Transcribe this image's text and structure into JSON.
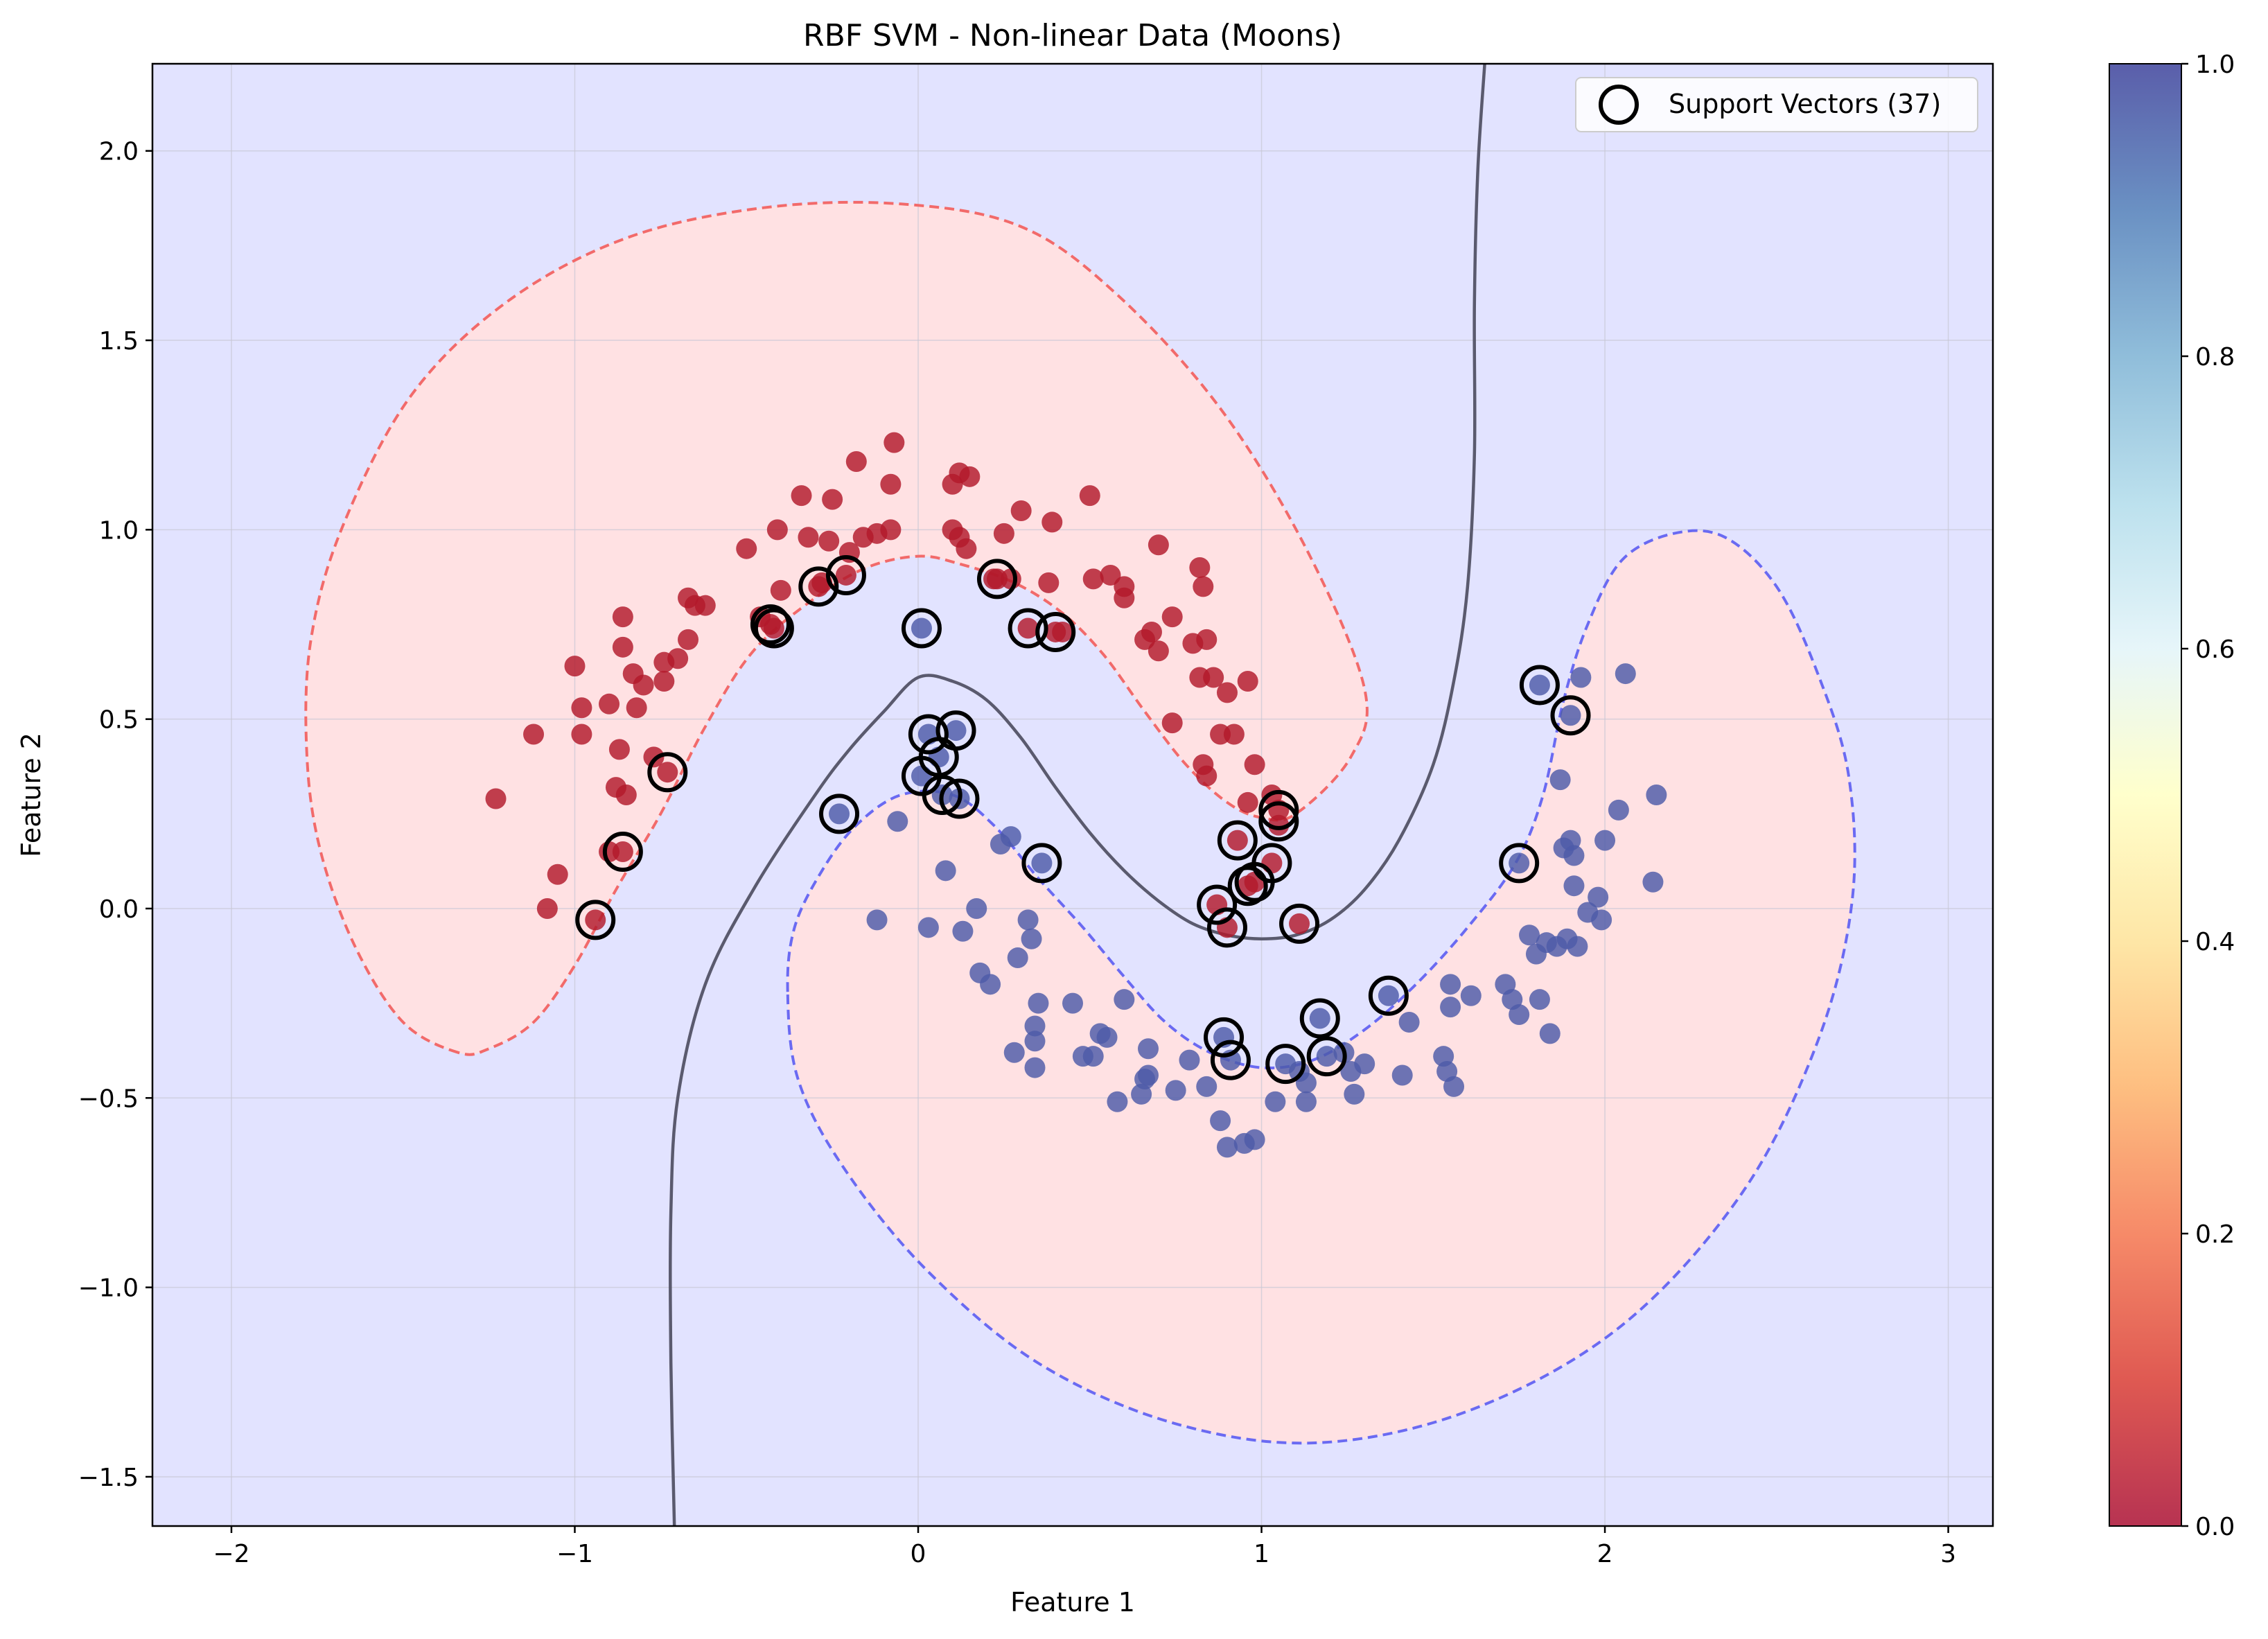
{
  "colors": {
    "background_region": "#e2e3ff",
    "class0_region": "#ffe1e3",
    "class0_point": "#b2182b",
    "class1_point": "#4d5aa8",
    "decision_boundary": "#5a5a6e",
    "margin_class0": "#f26a6a",
    "margin_class1": "#6a6af2",
    "grid": "#c8c8d4"
  },
  "chart_data": {
    "type": "scatter",
    "title": "RBF SVM - Non-linear Data (Moons)",
    "xlabel": "Feature 1",
    "ylabel": "Feature 2",
    "xlim": [
      -2.23,
      3.13
    ],
    "ylim": [
      -1.63,
      2.23
    ],
    "xticks": [
      -2,
      -1,
      0,
      1,
      2,
      3
    ],
    "xtick_labels": [
      "−2",
      "−1",
      "0",
      "1",
      "2",
      "3"
    ],
    "yticks": [
      -1.5,
      -1.0,
      -0.5,
      0.0,
      0.5,
      1.0,
      1.5,
      2.0
    ],
    "ytick_labels": [
      "−1.5",
      "−1.0",
      "−0.5",
      "0.0",
      "0.5",
      "1.0",
      "1.5",
      "2.0"
    ],
    "grid": true,
    "legend": {
      "label": "Support Vectors (37)",
      "position": "top-right"
    },
    "colorbar": {
      "range": [
        0.0,
        1.0
      ],
      "ticks": [
        0.0,
        0.2,
        0.4,
        0.6,
        0.8,
        1.0
      ],
      "tick_labels": [
        "0.0",
        "0.2",
        "0.4",
        "0.6",
        "0.8",
        "1.0"
      ],
      "colormap": [
        "#a50026",
        "#d73027",
        "#f46d43",
        "#fdae61",
        "#fee090",
        "#ffffbf",
        "#e0f3f8",
        "#abd9e9",
        "#74add1",
        "#4575b4",
        "#313695"
      ]
    },
    "decision_boundary": [
      [
        -0.71,
        -1.63
      ],
      [
        -0.72,
        -1.2
      ],
      [
        -0.72,
        -0.8
      ],
      [
        -0.7,
        -0.5
      ],
      [
        -0.62,
        -0.2
      ],
      [
        -0.48,
        0.05
      ],
      [
        -0.3,
        0.3
      ],
      [
        -0.2,
        0.42
      ],
      [
        -0.1,
        0.52
      ],
      [
        0,
        0.61
      ],
      [
        0.1,
        0.6
      ],
      [
        0.2,
        0.55
      ],
      [
        0.3,
        0.45
      ],
      [
        0.4,
        0.32
      ],
      [
        0.5,
        0.2
      ],
      [
        0.6,
        0.1
      ],
      [
        0.7,
        0.02
      ],
      [
        0.8,
        -0.04
      ],
      [
        0.9,
        -0.07
      ],
      [
        1.0,
        -0.08
      ],
      [
        1.1,
        -0.07
      ],
      [
        1.2,
        -0.03
      ],
      [
        1.3,
        0.05
      ],
      [
        1.4,
        0.18
      ],
      [
        1.5,
        0.38
      ],
      [
        1.56,
        0.6
      ],
      [
        1.6,
        0.85
      ],
      [
        1.62,
        1.2
      ],
      [
        1.62,
        1.6
      ],
      [
        1.63,
        1.95
      ],
      [
        1.65,
        2.23
      ]
    ],
    "margin_class0": [
      [
        -1.34,
        -0.38
      ],
      [
        -1.5,
        -0.3
      ],
      [
        -1.64,
        -0.1
      ],
      [
        -1.74,
        0.15
      ],
      [
        -1.78,
        0.4
      ],
      [
        -1.77,
        0.7
      ],
      [
        -1.68,
        1.0
      ],
      [
        -1.48,
        1.35
      ],
      [
        -1.2,
        1.6
      ],
      [
        -0.85,
        1.77
      ],
      [
        -0.45,
        1.85
      ],
      [
        -0.05,
        1.86
      ],
      [
        0.3,
        1.8
      ],
      [
        0.58,
        1.62
      ],
      [
        0.88,
        1.32
      ],
      [
        1.13,
        0.95
      ],
      [
        1.3,
        0.58
      ],
      [
        1.26,
        0.4
      ],
      [
        1.1,
        0.25
      ],
      [
        1.0,
        0.24
      ],
      [
        0.9,
        0.28
      ],
      [
        0.78,
        0.38
      ],
      [
        0.66,
        0.52
      ],
      [
        0.54,
        0.67
      ],
      [
        0.42,
        0.78
      ],
      [
        0.28,
        0.86
      ],
      [
        0.12,
        0.91
      ],
      [
        0,
        0.93
      ],
      [
        -0.15,
        0.9
      ],
      [
        -0.3,
        0.82
      ],
      [
        -0.48,
        0.68
      ],
      [
        -0.62,
        0.48
      ],
      [
        -0.75,
        0.25
      ],
      [
        -0.88,
        0.05
      ],
      [
        -1.0,
        -0.15
      ],
      [
        -1.12,
        -0.3
      ],
      [
        -1.25,
        -0.37
      ],
      [
        -1.34,
        -0.38
      ]
    ],
    "margin_class1": [
      [
        -0.38,
        -0.22
      ],
      [
        -0.36,
        -0.05
      ],
      [
        -0.28,
        0.1
      ],
      [
        -0.18,
        0.22
      ],
      [
        -0.05,
        0.3
      ],
      [
        0.1,
        0.3
      ],
      [
        0.22,
        0.22
      ],
      [
        0.35,
        0.08
      ],
      [
        0.48,
        -0.05
      ],
      [
        0.6,
        -0.18
      ],
      [
        0.72,
        -0.3
      ],
      [
        0.85,
        -0.38
      ],
      [
        1.0,
        -0.42
      ],
      [
        1.15,
        -0.4
      ],
      [
        1.3,
        -0.32
      ],
      [
        1.45,
        -0.2
      ],
      [
        1.6,
        -0.05
      ],
      [
        1.74,
        0.12
      ],
      [
        1.82,
        0.3
      ],
      [
        1.88,
        0.55
      ],
      [
        1.95,
        0.75
      ],
      [
        2.05,
        0.92
      ],
      [
        2.2,
        0.99
      ],
      [
        2.35,
        0.98
      ],
      [
        2.5,
        0.85
      ],
      [
        2.62,
        0.62
      ],
      [
        2.71,
        0.35
      ],
      [
        2.72,
        0.02
      ],
      [
        2.62,
        -0.35
      ],
      [
        2.4,
        -0.75
      ],
      [
        2.05,
        -1.1
      ],
      [
        1.62,
        -1.32
      ],
      [
        1.17,
        -1.41
      ],
      [
        0.75,
        -1.36
      ],
      [
        0.35,
        -1.2
      ],
      [
        0.02,
        -0.95
      ],
      [
        -0.22,
        -0.68
      ],
      [
        -0.35,
        -0.45
      ],
      [
        -0.38,
        -0.22
      ]
    ],
    "class0_points": [
      [
        -1.23,
        0.29
      ],
      [
        -1.12,
        0.46
      ],
      [
        -1.08,
        0.0
      ],
      [
        -1.05,
        0.09
      ],
      [
        -1.0,
        0.64
      ],
      [
        -0.98,
        0.53
      ],
      [
        -0.98,
        0.46
      ],
      [
        -0.9,
        0.54
      ],
      [
        -0.9,
        0.15
      ],
      [
        -0.88,
        0.32
      ],
      [
        -0.87,
        0.42
      ],
      [
        -0.86,
        0.69
      ],
      [
        -0.86,
        0.77
      ],
      [
        -0.85,
        0.3
      ],
      [
        -0.83,
        0.62
      ],
      [
        -0.82,
        0.53
      ],
      [
        -0.8,
        0.59
      ],
      [
        -0.77,
        0.4
      ],
      [
        -0.74,
        0.6
      ],
      [
        -0.74,
        0.65
      ],
      [
        -0.7,
        0.66
      ],
      [
        -0.67,
        0.71
      ],
      [
        -0.67,
        0.82
      ],
      [
        -0.65,
        0.8
      ],
      [
        -0.62,
        0.8
      ],
      [
        -0.5,
        0.95
      ],
      [
        -0.46,
        0.77
      ],
      [
        -0.43,
        0.75
      ],
      [
        -0.41,
        1.0
      ],
      [
        -0.4,
        0.84
      ],
      [
        -0.34,
        1.09
      ],
      [
        -0.32,
        0.98
      ],
      [
        -0.28,
        0.86
      ],
      [
        -0.26,
        0.97
      ],
      [
        -0.25,
        1.08
      ],
      [
        -0.2,
        0.94
      ],
      [
        -0.18,
        1.18
      ],
      [
        -0.16,
        0.98
      ],
      [
        -0.12,
        0.99
      ],
      [
        -0.08,
        1.0
      ],
      [
        -0.07,
        1.23
      ],
      [
        -0.08,
        1.12
      ],
      [
        0.1,
        1.0
      ],
      [
        0.1,
        1.12
      ],
      [
        0.12,
        1.15
      ],
      [
        0.15,
        1.14
      ],
      [
        0.12,
        0.98
      ],
      [
        0.14,
        0.95
      ],
      [
        0.22,
        0.87
      ],
      [
        0.25,
        0.99
      ],
      [
        0.27,
        0.87
      ],
      [
        0.3,
        1.05
      ],
      [
        0.38,
        0.86
      ],
      [
        0.39,
        1.02
      ],
      [
        0.42,
        0.73
      ],
      [
        0.5,
        1.09
      ],
      [
        0.51,
        0.87
      ],
      [
        0.56,
        0.88
      ],
      [
        0.6,
        0.82
      ],
      [
        0.6,
        0.85
      ],
      [
        0.66,
        0.71
      ],
      [
        0.68,
        0.73
      ],
      [
        0.7,
        0.68
      ],
      [
        0.7,
        0.96
      ],
      [
        0.74,
        0.77
      ],
      [
        0.74,
        0.49
      ],
      [
        0.8,
        0.7
      ],
      [
        0.82,
        0.61
      ],
      [
        0.82,
        0.9
      ],
      [
        0.83,
        0.85
      ],
      [
        0.83,
        0.38
      ],
      [
        0.84,
        0.35
      ],
      [
        0.84,
        0.71
      ],
      [
        0.86,
        0.61
      ],
      [
        0.88,
        0.46
      ],
      [
        0.9,
        0.57
      ],
      [
        0.92,
        0.46
      ],
      [
        0.96,
        0.6
      ],
      [
        0.96,
        0.28
      ],
      [
        0.98,
        0.38
      ],
      [
        1.03,
        0.3
      ],
      [
        1.03,
        0.12
      ],
      [
        1.05,
        0.22
      ],
      [
        1.05,
        0.26
      ],
      [
        1.11,
        -0.04
      ],
      [
        0.93,
        0.18
      ],
      [
        0.96,
        0.06
      ],
      [
        0.98,
        0.07
      ],
      [
        0.87,
        0.01
      ],
      [
        0.9,
        -0.05
      ],
      [
        -0.94,
        -0.03
      ],
      [
        -0.86,
        0.15
      ],
      [
        -0.73,
        0.36
      ],
      [
        -0.42,
        0.74
      ],
      [
        -0.29,
        0.85
      ],
      [
        -0.21,
        0.88
      ],
      [
        0.23,
        0.87
      ],
      [
        0.32,
        0.74
      ],
      [
        0.4,
        0.73
      ]
    ],
    "class1_points": [
      [
        -0.06,
        0.23
      ],
      [
        -0.12,
        -0.03
      ],
      [
        0.03,
        -0.05
      ],
      [
        0.08,
        0.1
      ],
      [
        0.13,
        -0.06
      ],
      [
        0.17,
        0.0
      ],
      [
        0.18,
        -0.17
      ],
      [
        0.21,
        -0.2
      ],
      [
        0.24,
        0.17
      ],
      [
        0.27,
        0.19
      ],
      [
        0.28,
        -0.38
      ],
      [
        0.29,
        -0.13
      ],
      [
        0.32,
        -0.03
      ],
      [
        0.33,
        -0.08
      ],
      [
        0.34,
        -0.31
      ],
      [
        0.34,
        -0.35
      ],
      [
        0.34,
        -0.42
      ],
      [
        0.35,
        -0.25
      ],
      [
        0.45,
        -0.25
      ],
      [
        0.48,
        -0.39
      ],
      [
        0.51,
        -0.39
      ],
      [
        0.53,
        -0.33
      ],
      [
        0.55,
        -0.34
      ],
      [
        0.58,
        -0.51
      ],
      [
        0.6,
        -0.24
      ],
      [
        0.65,
        -0.49
      ],
      [
        0.66,
        -0.45
      ],
      [
        0.67,
        -0.44
      ],
      [
        0.67,
        -0.37
      ],
      [
        0.75,
        -0.48
      ],
      [
        0.79,
        -0.4
      ],
      [
        0.84,
        -0.47
      ],
      [
        0.88,
        -0.56
      ],
      [
        0.9,
        -0.63
      ],
      [
        0.95,
        -0.62
      ],
      [
        0.98,
        -0.61
      ],
      [
        1.04,
        -0.51
      ],
      [
        1.11,
        -0.43
      ],
      [
        1.13,
        -0.46
      ],
      [
        1.13,
        -0.51
      ],
      [
        1.24,
        -0.38
      ],
      [
        1.26,
        -0.43
      ],
      [
        1.27,
        -0.49
      ],
      [
        1.3,
        -0.41
      ],
      [
        1.41,
        -0.44
      ],
      [
        1.43,
        -0.3
      ],
      [
        1.53,
        -0.39
      ],
      [
        1.54,
        -0.43
      ],
      [
        1.55,
        -0.2
      ],
      [
        1.56,
        -0.47
      ],
      [
        1.55,
        -0.26
      ],
      [
        1.61,
        -0.23
      ],
      [
        1.71,
        -0.2
      ],
      [
        1.73,
        -0.24
      ],
      [
        1.75,
        -0.28
      ],
      [
        1.78,
        -0.07
      ],
      [
        1.8,
        -0.12
      ],
      [
        1.81,
        -0.24
      ],
      [
        1.83,
        -0.09
      ],
      [
        1.84,
        -0.33
      ],
      [
        1.86,
        -0.1
      ],
      [
        1.87,
        0.34
      ],
      [
        1.88,
        0.16
      ],
      [
        1.89,
        -0.08
      ],
      [
        1.9,
        0.18
      ],
      [
        1.91,
        0.14
      ],
      [
        1.91,
        0.06
      ],
      [
        1.92,
        -0.1
      ],
      [
        1.95,
        -0.01
      ],
      [
        1.98,
        0.03
      ],
      [
        1.99,
        -0.03
      ],
      [
        2.0,
        0.18
      ],
      [
        2.04,
        0.26
      ],
      [
        2.06,
        0.62
      ],
      [
        2.14,
        0.07
      ],
      [
        2.15,
        0.3
      ],
      [
        1.93,
        0.61
      ],
      [
        0.01,
        0.35
      ],
      [
        0.01,
        0.74
      ],
      [
        0.03,
        0.46
      ],
      [
        0.06,
        0.4
      ],
      [
        0.07,
        0.3
      ],
      [
        0.11,
        0.47
      ],
      [
        0.12,
        0.29
      ],
      [
        -0.23,
        0.25
      ],
      [
        0.36,
        0.12
      ],
      [
        0.89,
        -0.34
      ],
      [
        0.91,
        -0.4
      ],
      [
        1.07,
        -0.41
      ],
      [
        1.17,
        -0.29
      ],
      [
        1.19,
        -0.39
      ],
      [
        1.37,
        -0.23
      ],
      [
        1.75,
        0.12
      ],
      [
        1.81,
        0.59
      ],
      [
        1.9,
        0.51
      ]
    ],
    "support_vectors": [
      [
        -0.94,
        -0.03
      ],
      [
        -0.86,
        0.15
      ],
      [
        -0.73,
        0.36
      ],
      [
        -0.42,
        0.74
      ],
      [
        -0.43,
        0.75
      ],
      [
        -0.29,
        0.85
      ],
      [
        -0.21,
        0.88
      ],
      [
        0.23,
        0.87
      ],
      [
        0.32,
        0.74
      ],
      [
        0.4,
        0.73
      ],
      [
        0.01,
        0.74
      ],
      [
        0.03,
        0.46
      ],
      [
        0.06,
        0.4
      ],
      [
        0.01,
        0.35
      ],
      [
        0.07,
        0.3
      ],
      [
        0.11,
        0.47
      ],
      [
        0.12,
        0.29
      ],
      [
        -0.23,
        0.25
      ],
      [
        0.36,
        0.12
      ],
      [
        0.93,
        0.18
      ],
      [
        0.96,
        0.06
      ],
      [
        0.98,
        0.07
      ],
      [
        0.87,
        0.01
      ],
      [
        0.9,
        -0.05
      ],
      [
        1.03,
        0.12
      ],
      [
        1.05,
        0.26
      ],
      [
        1.05,
        0.23
      ],
      [
        1.11,
        -0.04
      ],
      [
        0.89,
        -0.34
      ],
      [
        0.91,
        -0.4
      ],
      [
        1.07,
        -0.41
      ],
      [
        1.17,
        -0.29
      ],
      [
        1.19,
        -0.39
      ],
      [
        1.37,
        -0.23
      ],
      [
        1.75,
        0.12
      ],
      [
        1.81,
        0.59
      ],
      [
        1.9,
        0.51
      ]
    ]
  }
}
